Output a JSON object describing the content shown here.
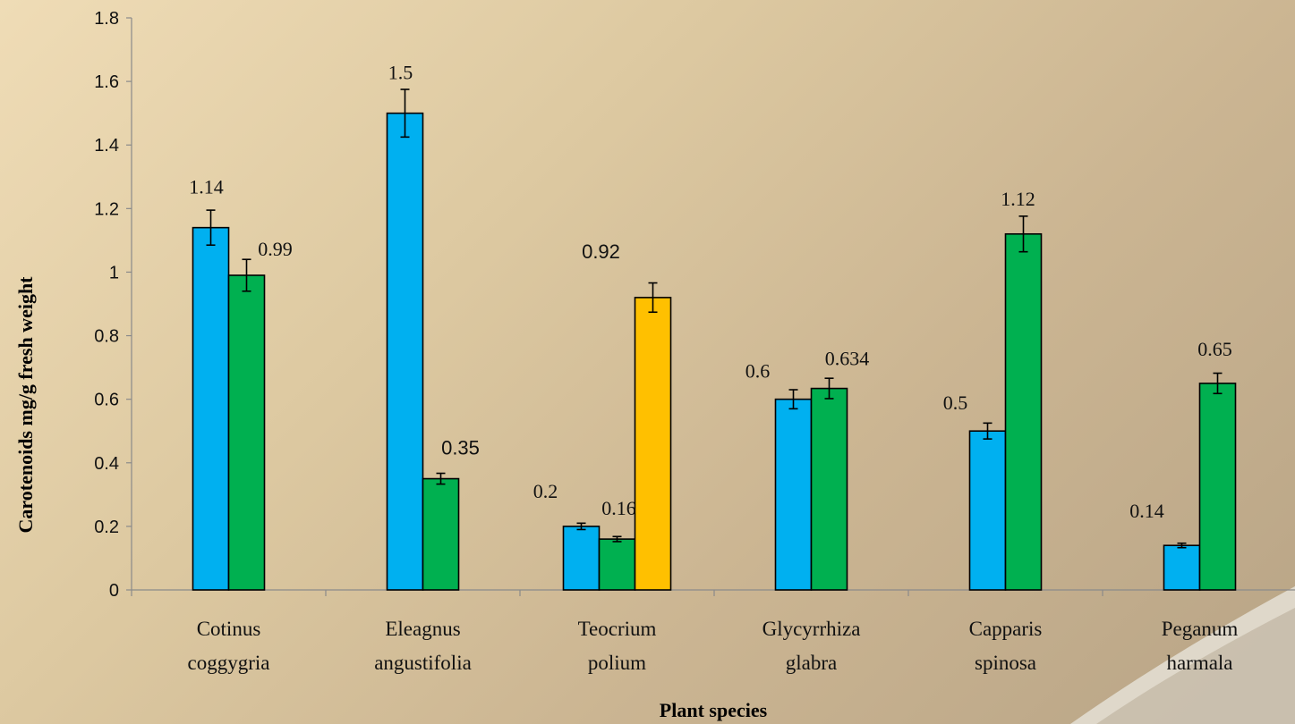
{
  "chart_data": {
    "type": "bar",
    "title": "",
    "xlabel": "Plant species",
    "ylabel": "Carotenoids mg/g fresh weight",
    "ylim": [
      0,
      1.8
    ],
    "yticks": [
      0,
      0.2,
      0.4,
      0.6,
      0.8,
      1,
      1.2,
      1.4,
      1.6,
      1.8
    ],
    "ytick_labels": [
      "0",
      "0.2",
      "0.4",
      "0.6",
      "0.8",
      "1",
      "1.2",
      "1.4",
      "1.6",
      "1.8"
    ],
    "grid": false,
    "legend": "none",
    "categories": [
      [
        "Cotinus",
        "coggygria"
      ],
      [
        "Eleagnus",
        "angustifolia"
      ],
      [
        "Teocrium",
        "polium"
      ],
      [
        "Glycyrrhiza",
        "glabra"
      ],
      [
        "Capparis",
        "spinosa"
      ],
      [
        "Peganum",
        "harmala"
      ]
    ],
    "groups": [
      {
        "bars": [
          {
            "value": 1.14,
            "error": 0.055,
            "color": "#00b0f0",
            "label": "1.14"
          },
          {
            "value": 0.99,
            "error": 0.05,
            "color": "#00b050",
            "label": "0.99"
          }
        ]
      },
      {
        "bars": [
          {
            "value": 1.5,
            "error": 0.075,
            "color": "#00b0f0",
            "label": "1.5"
          },
          {
            "value": 0.35,
            "error": 0.017,
            "color": "#00b050",
            "label": "0.35"
          }
        ]
      },
      {
        "bars": [
          {
            "value": 0.2,
            "error": 0.01,
            "color": "#00b0f0",
            "label": "0.2"
          },
          {
            "value": 0.16,
            "error": 0.008,
            "color": "#00b050",
            "label": "0.16"
          },
          {
            "value": 0.92,
            "error": 0.046,
            "color": "#ffc000",
            "label": "0.92"
          }
        ]
      },
      {
        "bars": [
          {
            "value": 0.6,
            "error": 0.03,
            "color": "#00b0f0",
            "label": "0.6"
          },
          {
            "value": 0.634,
            "error": 0.032,
            "color": "#00b050",
            "label": "0.634"
          }
        ]
      },
      {
        "bars": [
          {
            "value": 0.5,
            "error": 0.025,
            "color": "#00b0f0",
            "label": "0.5"
          },
          {
            "value": 1.12,
            "error": 0.056,
            "color": "#00b050",
            "label": "1.12"
          }
        ]
      },
      {
        "bars": [
          {
            "value": 0.14,
            "error": 0.007,
            "color": "#00b0f0",
            "label": "0.14"
          },
          {
            "value": 0.65,
            "error": 0.032,
            "color": "#00b050",
            "label": "0.65"
          }
        ]
      }
    ]
  }
}
